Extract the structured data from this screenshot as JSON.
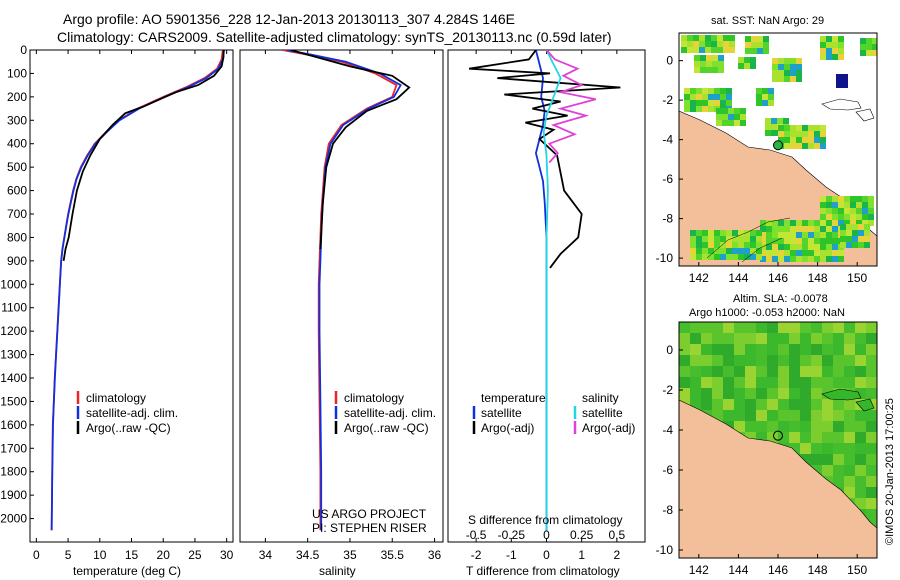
{
  "header": {
    "title_line1": "Argo profile: AO 5901356_228 12-Jan-2013 20130113_307 4.284S 146E",
    "title_line2": "Climatology: CARS2009. Satellite-adjusted climatology: synTS_20130113.nc (0.59d later)"
  },
  "colors": {
    "climatology": "#e8262a",
    "satellite": "#1030e0",
    "argo": "#000000",
    "sal_satellite": "#22d6e6",
    "sal_argo": "#e040d8",
    "land": "#f2bf9a"
  },
  "chart_data": [
    {
      "type": "line",
      "name": "temperature",
      "xlabel": "temperature (deg C)",
      "ylabel": "",
      "xlim": [
        -1,
        31
      ],
      "ylim": [
        2100,
        0
      ],
      "xticks": [
        0,
        5,
        10,
        15,
        20,
        25,
        30
      ],
      "yticks": [
        0,
        100,
        200,
        300,
        400,
        500,
        600,
        700,
        800,
        900,
        1000,
        1100,
        1200,
        1300,
        1400,
        1500,
        1600,
        1700,
        1800,
        1900,
        2000
      ],
      "legend": [
        "climatology",
        "satellite-adj. clim.",
        "Argo(..raw -QC)"
      ],
      "series": [
        {
          "name": "climatology",
          "x": [
            29.4,
            29.2,
            28.5,
            26.5,
            23.5,
            20.0,
            16.0,
            13.0,
            11.0,
            9.2,
            8.0,
            7.0,
            6.3,
            5.8,
            5.4,
            5.0,
            4.7,
            4.4,
            4.1,
            3.9,
            3.7,
            3.5,
            3.3,
            3.1,
            2.9,
            2.75,
            2.6,
            2.5,
            2.4
          ],
          "y": [
            0,
            40,
            80,
            120,
            160,
            200,
            250,
            300,
            350,
            400,
            450,
            500,
            550,
            600,
            650,
            700,
            750,
            800,
            850,
            900,
            1000,
            1100,
            1200,
            1300,
            1400,
            1500,
            1600,
            1800,
            2050
          ]
        },
        {
          "name": "satellite-adj. clim.",
          "x": [
            29.6,
            29.4,
            28.7,
            26.8,
            23.8,
            20.2,
            16.2,
            13.1,
            11.1,
            9.3,
            8.1,
            7.1,
            6.35,
            5.85,
            5.45,
            5.05,
            4.72,
            4.42,
            4.12,
            3.92,
            3.72,
            3.52,
            3.32,
            3.12,
            2.92,
            2.77,
            2.62,
            2.52,
            2.42
          ],
          "y": [
            0,
            40,
            80,
            120,
            160,
            200,
            250,
            300,
            350,
            400,
            450,
            500,
            550,
            600,
            650,
            700,
            750,
            800,
            850,
            900,
            1000,
            1100,
            1200,
            1300,
            1400,
            1500,
            1600,
            1800,
            2050
          ]
        },
        {
          "name": "Argo(..raw -QC)",
          "x": [
            29.5,
            29.5,
            29.2,
            28.0,
            25.5,
            22.0,
            19.5,
            17.0,
            14.0,
            12.0,
            10.0,
            8.5,
            7.3,
            6.4,
            5.7,
            5.1,
            4.6,
            4.3
          ],
          "y": [
            0,
            30,
            70,
            110,
            150,
            180,
            210,
            240,
            270,
            320,
            380,
            450,
            520,
            600,
            700,
            800,
            850,
            900
          ]
        }
      ]
    },
    {
      "type": "line",
      "name": "salinity",
      "xlabel": "salinity",
      "ylabel": "",
      "xlim": [
        33.7,
        36.1
      ],
      "ylim": [
        2100,
        0
      ],
      "xticks": [
        34,
        34.5,
        35,
        35.5,
        36
      ],
      "legend": [
        "climatology",
        "satellite-adj. clim.",
        "Argo(..raw -QC)"
      ],
      "annotation": [
        "US ARGO PROJECT",
        "PI: STEPHEN RISER"
      ],
      "series": [
        {
          "name": "climatology",
          "x": [
            34.2,
            34.5,
            34.9,
            35.3,
            35.55,
            35.5,
            35.2,
            34.9,
            34.75,
            34.7,
            34.68,
            34.66,
            34.65,
            34.64,
            34.63,
            34.63,
            34.64,
            34.65,
            34.65
          ],
          "y": [
            0,
            20,
            50,
            100,
            150,
            200,
            250,
            320,
            400,
            500,
            600,
            700,
            800,
            900,
            1000,
            1200,
            1500,
            1800,
            2050
          ]
        },
        {
          "name": "satellite-adj. clim.",
          "x": [
            34.25,
            34.55,
            34.95,
            35.35,
            35.6,
            35.52,
            35.22,
            34.92,
            34.77,
            34.71,
            34.69,
            34.67,
            34.66,
            34.65,
            34.64,
            34.64,
            34.65,
            34.66,
            34.66
          ],
          "y": [
            0,
            20,
            50,
            100,
            150,
            200,
            250,
            320,
            400,
            500,
            600,
            700,
            800,
            900,
            1000,
            1200,
            1500,
            1800,
            2050
          ]
        },
        {
          "name": "Argo(..raw -QC)",
          "x": [
            34.3,
            34.6,
            35.0,
            35.5,
            35.7,
            35.55,
            35.2,
            34.95,
            34.8,
            34.72,
            34.68,
            34.65
          ],
          "y": [
            0,
            30,
            70,
            110,
            160,
            210,
            260,
            330,
            400,
            500,
            650,
            850
          ]
        }
      ]
    },
    {
      "type": "line",
      "name": "difference",
      "xlabel": "T difference from climatology",
      "xlabel_top": "S difference from climatology",
      "xlim": [
        -2.8,
        2.8
      ],
      "ylim": [
        2100,
        0
      ],
      "xticks": [
        -2,
        -1,
        0,
        1,
        2
      ],
      "xticks_top": [
        -0.5,
        -0.25,
        0,
        0.25,
        0.5
      ],
      "xticks_top_labels": [
        "-0.5",
        "-0.25",
        "0",
        "0.25",
        "0.5"
      ],
      "legend_temperature": {
        "title": "temperature",
        "items": [
          "satellite",
          "Argo(-adj)"
        ]
      },
      "legend_salinity": {
        "title": "salinity",
        "items": [
          "satellite",
          "Argo(-adj)"
        ]
      },
      "series": [
        {
          "name": "temperature satellite",
          "x": [
            -0.3,
            -0.2,
            -0.1,
            -0.15,
            -0.05,
            -0.1,
            -0.2,
            -0.3,
            -0.2,
            -0.1,
            -0.05,
            0.0,
            0.0,
            0.0,
            0.0,
            0.0
          ],
          "y": [
            0,
            60,
            120,
            200,
            260,
            320,
            380,
            440,
            500,
            560,
            650,
            800,
            1000,
            1300,
            1700,
            2050
          ]
        },
        {
          "name": "temperature Argo(-adj)",
          "x": [
            -0.3,
            -0.5,
            -2.2,
            0.1,
            -1.4,
            2.1,
            -1.2,
            0.4,
            -0.4,
            0.6,
            -0.6,
            0.2,
            -0.2,
            0.3,
            0.5,
            1.0,
            0.9,
            0.4,
            0.1
          ],
          "y": [
            0,
            40,
            80,
            100,
            120,
            160,
            190,
            220,
            250,
            280,
            310,
            340,
            380,
            450,
            600,
            700,
            800,
            870,
            930
          ]
        },
        {
          "name": "salinity satellite",
          "x": [
            0.0,
            0.05,
            0.1,
            0.05,
            0.0,
            -0.02,
            0.0,
            0.01,
            0.0,
            0.0,
            0.0,
            0.0
          ],
          "y": [
            0,
            60,
            120,
            200,
            280,
            350,
            450,
            600,
            800,
            1100,
            1500,
            2050
          ]
        },
        {
          "name": "salinity Argo(-adj)",
          "x": [
            0.0,
            0.06,
            0.22,
            0.12,
            0.25,
            0.1,
            0.35,
            0.1,
            0.28,
            0.05,
            0.2,
            0.02,
            0.08,
            0.02
          ],
          "y": [
            0,
            40,
            80,
            110,
            150,
            180,
            210,
            250,
            280,
            320,
            360,
            400,
            440,
            480
          ]
        }
      ]
    },
    {
      "type": "heatmap",
      "name": "sst-map",
      "title": "sat. SST: NaN Argo: 29",
      "xlim": [
        141,
        151
      ],
      "ylim": [
        -10.4,
        1.4
      ],
      "xticks": [
        142,
        144,
        146,
        148,
        150
      ],
      "yticks": [
        0,
        -2,
        -4,
        -6,
        -8,
        -10
      ],
      "xticklabels": [
        "142",
        "144",
        "146",
        "148",
        "150"
      ],
      "argo_position": {
        "lon": 146,
        "lat": -4.284
      }
    },
    {
      "type": "heatmap",
      "name": "sla-map",
      "title_line1": "Altim. SLA: -0.0078",
      "title_line2": "Argo h1000: -0.053 h2000: NaN",
      "xlim": [
        141,
        151
      ],
      "ylim": [
        -10.4,
        1.4
      ],
      "xticks": [
        142,
        144,
        146,
        148,
        150
      ],
      "yticks": [
        0,
        -2,
        -4,
        -6,
        -8,
        -10
      ],
      "xticklabels": [
        "142",
        "144",
        "146",
        "148",
        "150"
      ],
      "argo_position": {
        "lon": 146,
        "lat": -4.284
      }
    }
  ],
  "footer": {
    "watermark": "©IMOS 20-Jan-2013 17:00:25"
  }
}
